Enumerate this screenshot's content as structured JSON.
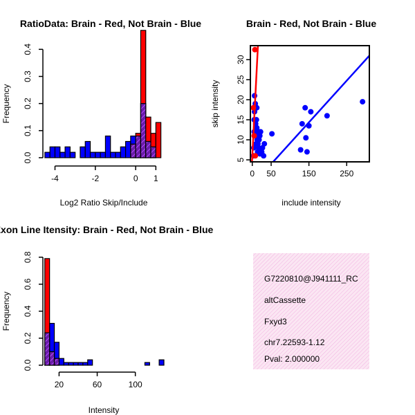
{
  "chart_data": [
    {
      "id": "ratio",
      "type": "bar",
      "title": "RatioData: Brain - Red, Not Brain - Blue",
      "xlabel": "Log2 Ratio Skip/Include",
      "ylabel": "Frequency",
      "xlim": [
        -4.6,
        1.4
      ],
      "ylim": [
        0,
        0.48
      ],
      "xticks": [
        -4,
        -2,
        0,
        1
      ],
      "xtick_labels": [
        "-4",
        "-2",
        "0",
        "1"
      ],
      "yticks": [
        0,
        0.1,
        0.2,
        0.3,
        0.4
      ],
      "ytick_labels": [
        "0.0",
        "0.1",
        "0.2",
        "0.3",
        "0.4"
      ],
      "series": [
        {
          "name": "Not Brain",
          "color": "#0000ff",
          "bin_start": -4.5,
          "bin_width": 0.25,
          "values": [
            0.02,
            0.04,
            0.04,
            0.02,
            0.04,
            0.02,
            0,
            0.04,
            0.06,
            0.02,
            0.02,
            0.02,
            0.08,
            0.02,
            0.02,
            0.04,
            0.06,
            0.08,
            0.08,
            0.2,
            0.06,
            0.04
          ]
        },
        {
          "name": "Brain",
          "color": "#ff0000",
          "bin_start": -0.25,
          "bin_width": 0.25,
          "values": [
            0.05,
            0.09,
            0.47,
            0.15,
            0.09,
            0.13
          ]
        }
      ]
    },
    {
      "id": "scatter",
      "type": "scatter",
      "title": "Brain - Red, Not Brain - Blue",
      "xlabel": "include intensity",
      "ylabel": "skip intensity",
      "xlim": [
        -5,
        310
      ],
      "ylim": [
        4.5,
        33.5
      ],
      "xticks": [
        0,
        50,
        150,
        250
      ],
      "xtick_labels": [
        "0",
        "50",
        "150",
        "250"
      ],
      "yticks": [
        5,
        10,
        15,
        20,
        25,
        30
      ],
      "ytick_labels": [
        "5",
        "10",
        "15",
        "20",
        "25",
        "30"
      ],
      "series": [
        {
          "name": "Not Brain",
          "color": "#0000ff",
          "points": [
            [
              3,
              6
            ],
            [
              4,
              8
            ],
            [
              5,
              12
            ],
            [
              5,
              15
            ],
            [
              6,
              17
            ],
            [
              6,
              21
            ],
            [
              8,
              19
            ],
            [
              9,
              14
            ],
            [
              10,
              11
            ],
            [
              10,
              9
            ],
            [
              11,
              15
            ],
            [
              12,
              18
            ],
            [
              12,
              13
            ],
            [
              13,
              10
            ],
            [
              14,
              7
            ],
            [
              15,
              9
            ],
            [
              16,
              12
            ],
            [
              17,
              8
            ],
            [
              18,
              10
            ],
            [
              20,
              6.5
            ],
            [
              20,
              11
            ],
            [
              22,
              12
            ],
            [
              25,
              7
            ],
            [
              27,
              8
            ],
            [
              30,
              6
            ],
            [
              32,
              9
            ],
            [
              52,
              11.5
            ],
            [
              128,
              7.5
            ],
            [
              132,
              14
            ],
            [
              140,
              18
            ],
            [
              142,
              10.5
            ],
            [
              145,
              7
            ],
            [
              150,
              13.5
            ],
            [
              155,
              17
            ],
            [
              198,
              16
            ],
            [
              292,
              19.5
            ]
          ],
          "fit_line": {
            "x": [
              12,
              310
            ],
            "y": [
              0,
              31
            ]
          }
        },
        {
          "name": "Brain",
          "color": "#ff0000",
          "points": [
            [
              3,
              18
            ],
            [
              5,
              11
            ],
            [
              7,
              32.5
            ],
            [
              8,
              6
            ]
          ],
          "fit_line": {
            "x": [
              -1,
              15
            ],
            "y": [
              4,
              33.5
            ]
          }
        }
      ]
    },
    {
      "id": "intensity",
      "type": "bar",
      "title": "Exon Line Itensity: Brain - Red, Not Brain - Blue",
      "xlabel": "Intensity",
      "ylabel": "Frequency",
      "xlim": [
        3,
        130
      ],
      "ylim": [
        0,
        0.82
      ],
      "xticks": [
        20,
        60,
        100
      ],
      "xtick_labels": [
        "20",
        "60",
        "100"
      ],
      "yticks": [
        0,
        0.2,
        0.4,
        0.6,
        0.8
      ],
      "ytick_labels": [
        "0.0",
        "0.2",
        "0.4",
        "0.6",
        "0.8"
      ],
      "series": [
        {
          "name": "Not Brain",
          "color": "#0000ff",
          "bin_start": 5,
          "bin_width": 5,
          "values": [
            0.24,
            0.31,
            0.17,
            0.05,
            0.02,
            0.02,
            0.02,
            0.02,
            0.02,
            0.04,
            0,
            0,
            0,
            0,
            0,
            0,
            0,
            0,
            0,
            0,
            0,
            0.02,
            0,
            0,
            0.04
          ]
        },
        {
          "name": "Brain",
          "color": "#ff0000",
          "bin_start": 5,
          "bin_width": 5,
          "values": [
            0.79,
            0.1,
            0.05
          ]
        }
      ]
    }
  ],
  "info": {
    "id_line": "G7220810@J941111_RC",
    "event_type": "altCassette",
    "gene": "Fxyd3",
    "location": "chr7.22593-1.12",
    "pval": "Pval: 2.000000",
    "pval_color": "#8b0000",
    "background_color": "#f9dff0",
    "hatch_color": "#ee82ee"
  }
}
